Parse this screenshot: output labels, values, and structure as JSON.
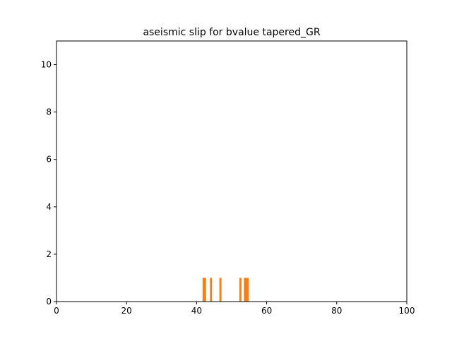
{
  "chart_data": {
    "type": "bar",
    "title": "aseismic slip for bvalue tapered_GR",
    "xlabel": "",
    "ylabel": "",
    "xlim": [
      0,
      100
    ],
    "ylim": [
      0,
      11
    ],
    "xticks": [
      "0",
      "20",
      "40",
      "60",
      "80",
      "100"
    ],
    "yticks": [
      "0",
      "2",
      "4",
      "6",
      "8",
      "10"
    ],
    "grid": false,
    "bar_color": "#ff7f0e",
    "bar_width": 0.6,
    "bars": [
      {
        "x": 42.0,
        "value": 1
      },
      {
        "x": 42.4,
        "value": 1
      },
      {
        "x": 44.1,
        "value": 1
      },
      {
        "x": 46.8,
        "value": 1
      },
      {
        "x": 52.5,
        "value": 1
      },
      {
        "x": 53.8,
        "value": 1
      },
      {
        "x": 54.2,
        "value": 1
      },
      {
        "x": 54.6,
        "value": 1
      }
    ]
  }
}
